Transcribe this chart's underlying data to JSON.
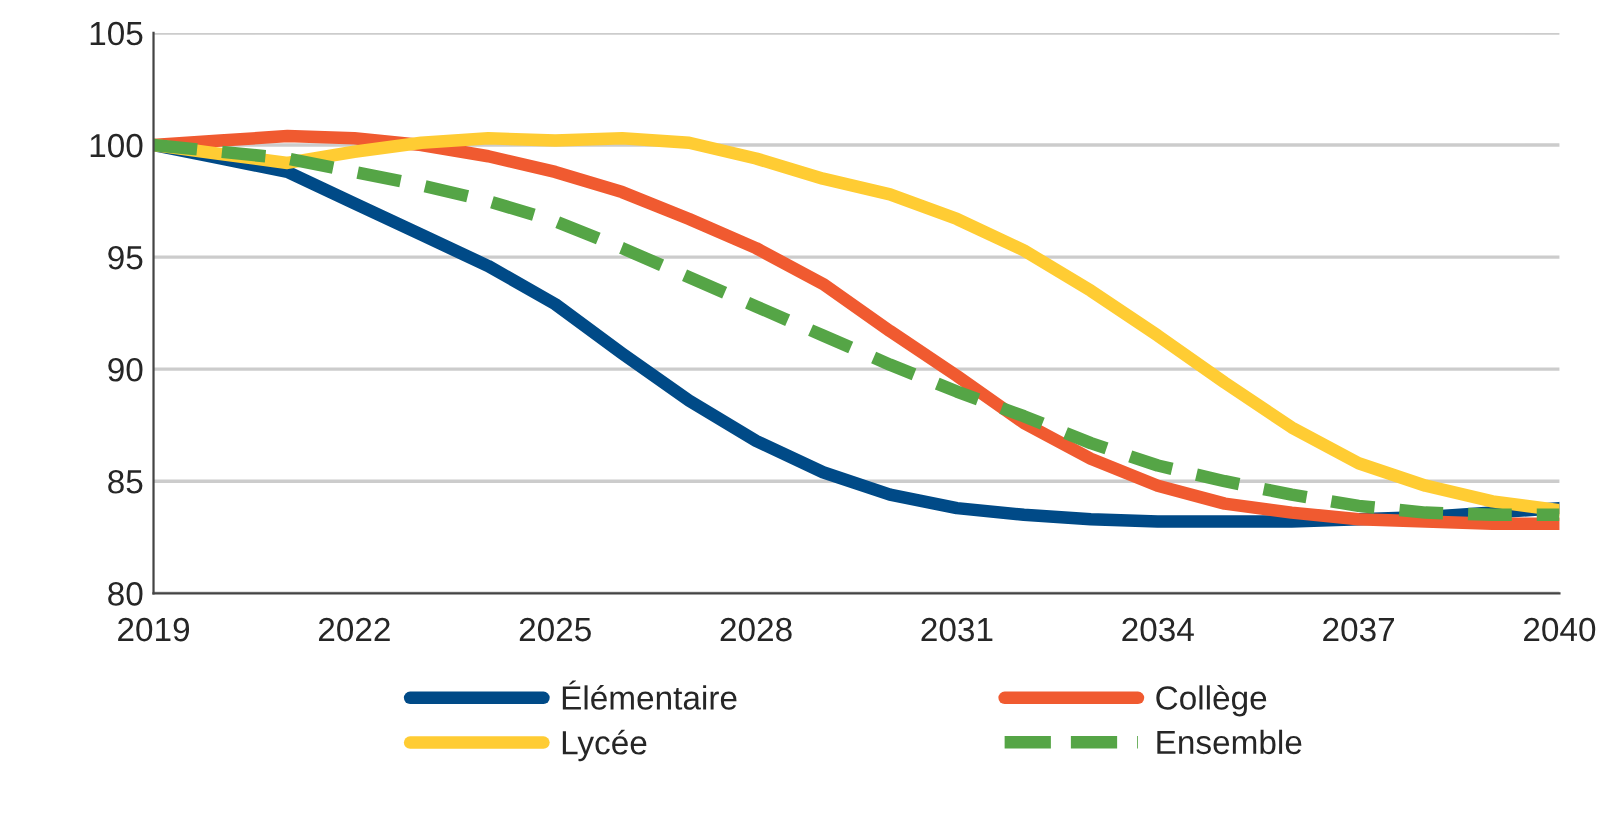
{
  "chart_data": {
    "type": "line",
    "x": [
      2019,
      2020,
      2021,
      2022,
      2023,
      2024,
      2025,
      2026,
      2027,
      2028,
      2029,
      2030,
      2031,
      2032,
      2033,
      2034,
      2035,
      2036,
      2037,
      2038,
      2039,
      2040
    ],
    "series": [
      {
        "name": "Élémentaire",
        "color": "#004a87",
        "values": [
          100,
          99.4,
          98.8,
          97.4,
          96.0,
          94.6,
          92.9,
          90.7,
          88.6,
          86.8,
          85.4,
          84.4,
          83.8,
          83.5,
          83.3,
          83.2,
          83.2,
          83.2,
          83.3,
          83.4,
          83.6,
          83.8
        ]
      },
      {
        "name": "Collège",
        "color": "#f05a30",
        "values": [
          100,
          100.2,
          100.4,
          100.3,
          100.0,
          99.5,
          98.8,
          97.9,
          96.7,
          95.4,
          93.8,
          91.7,
          89.7,
          87.6,
          86.0,
          84.8,
          84.0,
          83.6,
          83.3,
          83.2,
          83.1,
          83.1
        ]
      },
      {
        "name": "Lycée",
        "color": "#ffcc33",
        "values": [
          100,
          99.6,
          99.2,
          99.7,
          100.1,
          100.3,
          100.2,
          100.3,
          100.1,
          99.4,
          98.5,
          97.8,
          96.7,
          95.3,
          93.5,
          91.5,
          89.4,
          87.4,
          85.8,
          84.8,
          84.1,
          83.7
        ]
      },
      {
        "name": "Ensemble",
        "color": "#55a546",
        "line_style": "dashed",
        "values": [
          100,
          99.7,
          99.4,
          98.8,
          98.2,
          97.5,
          96.6,
          95.4,
          94.1,
          92.8,
          91.5,
          90.2,
          89.0,
          87.9,
          86.7,
          85.7,
          85.0,
          84.4,
          83.9,
          83.6,
          83.5,
          83.5
        ]
      }
    ],
    "xlim": [
      2019,
      2040
    ],
    "xticks": [
      2019,
      2022,
      2025,
      2028,
      2031,
      2034,
      2037,
      2040
    ],
    "ylim": [
      80,
      105
    ],
    "yticks": [
      80,
      85,
      90,
      95,
      100,
      105
    ],
    "grid": "y",
    "legend": "bottom",
    "line_style": "solid",
    "marker": "none"
  }
}
